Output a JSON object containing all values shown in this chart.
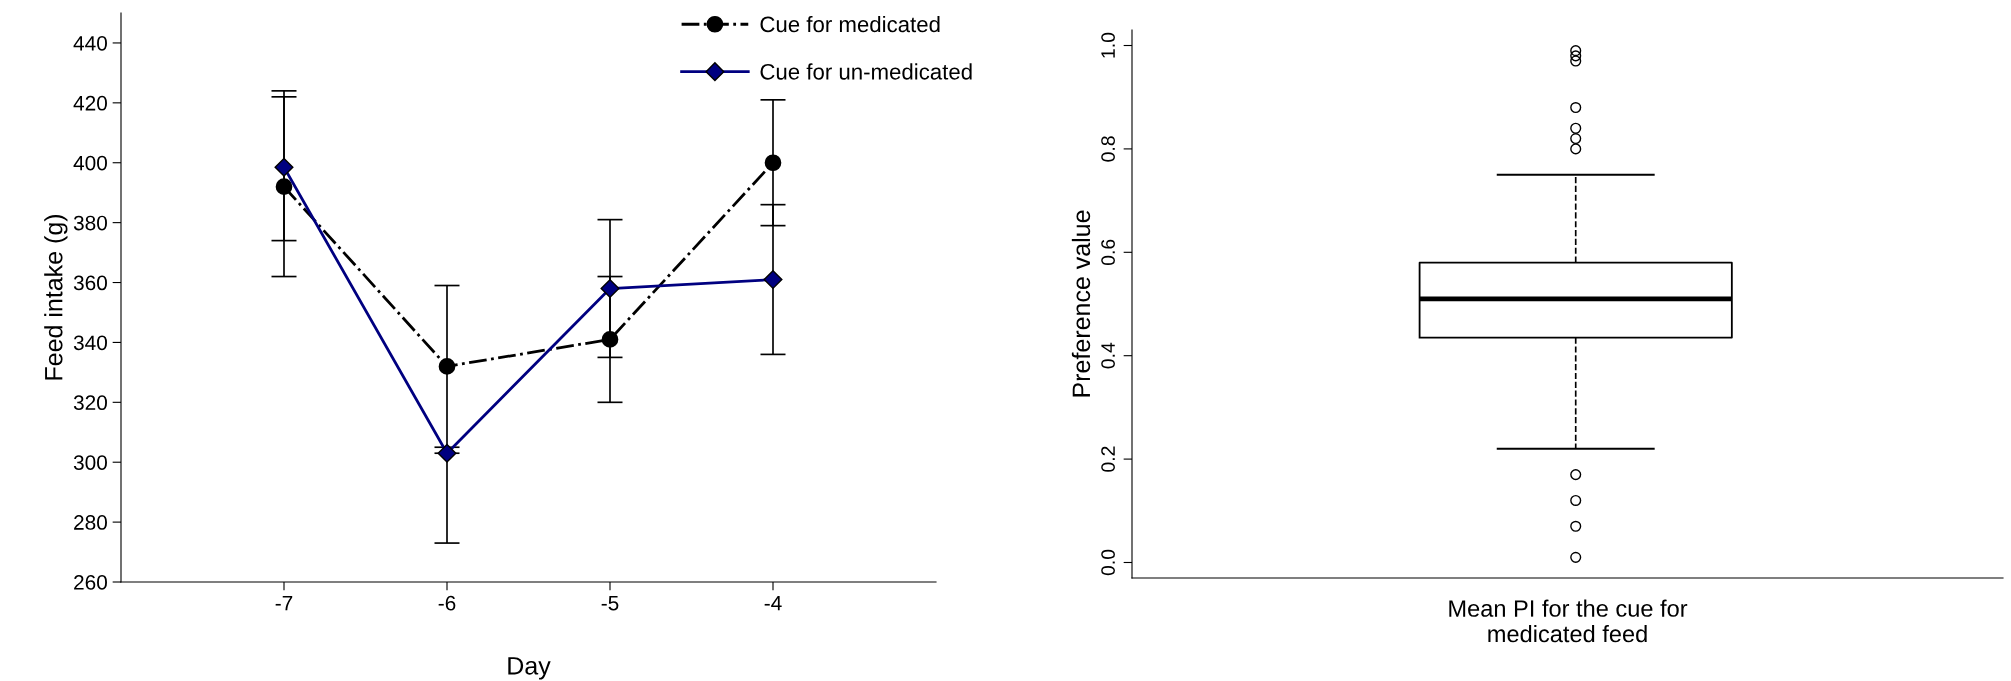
{
  "chart_data": [
    {
      "type": "line",
      "xlabel": "Day",
      "ylabel": "Feed intake (g)",
      "x": [
        -7,
        -6,
        -5,
        -4
      ],
      "xlim": [
        -8,
        -3
      ],
      "xticks": [
        -7,
        -6,
        -5,
        -4
      ],
      "ylim": [
        260,
        450
      ],
      "yticks": [
        260,
        280,
        300,
        320,
        340,
        360,
        380,
        400,
        420,
        440
      ],
      "grid": false,
      "legend": "top right",
      "series": [
        {
          "name": "Cue for medicated",
          "color": "#000000",
          "marker": "circle",
          "line_style": "dashdot",
          "values": [
            392,
            332,
            341,
            400
          ],
          "errors": [
            [
              362,
              422
            ],
            [
              305,
              359
            ],
            [
              320,
              362
            ],
            [
              379,
              421
            ]
          ]
        },
        {
          "name": "Cue for un-medicated",
          "color": "#000080",
          "marker": "diamond",
          "line_style": "solid",
          "values": [
            398.5,
            303,
            358,
            361
          ],
          "errors": [
            [
              374,
              424
            ],
            [
              273,
              303
            ],
            [
              335,
              381
            ],
            [
              336,
              386
            ]
          ]
        }
      ]
    },
    {
      "type": "box",
      "xlabel": "Mean PI for the cue for\nmedicated feed",
      "ylabel": "Preference value",
      "categories": [
        null
      ],
      "ylim": [
        -0.03,
        1.03
      ],
      "yticks": [
        {
          "value": 0,
          "label": "0.0"
        },
        0.2,
        0.4,
        0.6,
        0.8,
        {
          "value": 1,
          "label": "1.0"
        }
      ],
      "grid": false,
      "boxes": [
        {
          "low": 0.22,
          "q1": 0.435,
          "median": 0.51,
          "q3": 0.58,
          "high": 0.75,
          "outliers": [
            0.99,
            0.98,
            0.97,
            0.88,
            0.84,
            0.82,
            0.8,
            0.17,
            0.12,
            0.07,
            0.01
          ]
        }
      ]
    }
  ]
}
